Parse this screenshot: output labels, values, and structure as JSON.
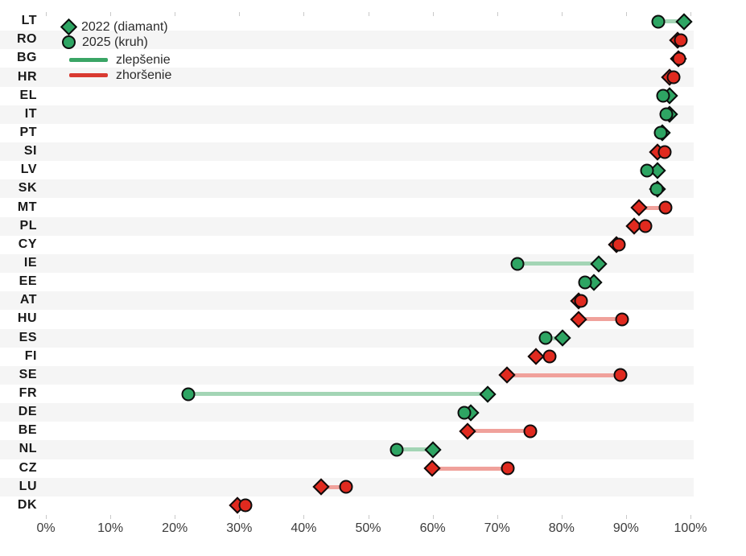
{
  "legend": {
    "item_2022": "2022 (diamant)",
    "item_2025": "2025 (kruh)",
    "improvement_label": "zlepšenie",
    "worsening_label": "zhoršenie"
  },
  "colors": {
    "green_marker": "#2ea563",
    "red_marker": "#e02a1f",
    "green_line": "#a3d5b5",
    "red_line": "#f0a19b",
    "band_gray": "#f5f5f5",
    "band_white": "#ffffff",
    "marker_border": "#0d0d0d",
    "axis_text": "#3c3c3c",
    "ylabel_text": "#1a1a1a"
  },
  "x_axis": {
    "tick_labels": [
      "0%",
      "10%",
      "20%",
      "30%",
      "40%",
      "50%",
      "60%",
      "70%",
      "80%",
      "90%",
      "100%"
    ],
    "tick_values": [
      0,
      10,
      20,
      30,
      40,
      50,
      60,
      70,
      80,
      90,
      100
    ],
    "min": 0,
    "max": 100
  },
  "chart_data": {
    "type": "dumbbell",
    "title": "",
    "xlabel": "",
    "ylabel": "",
    "xlim": [
      0,
      100
    ],
    "grid": "alternating-row-bands",
    "legend_position": "top-left-inside",
    "categories": [
      "LT",
      "RO",
      "BG",
      "HR",
      "EL",
      "IT",
      "PT",
      "SI",
      "LV",
      "SK",
      "MT",
      "PL",
      "CY",
      "IE",
      "EE",
      "AT",
      "HU",
      "ES",
      "FI",
      "SE",
      "FR",
      "DE",
      "BE",
      "NL",
      "CZ",
      "LU",
      "DK"
    ],
    "series": [
      {
        "name": "2022 (diamant)",
        "marker": "diamond",
        "values": [
          99.0,
          98.0,
          98.1,
          96.8,
          96.7,
          96.7,
          95.6,
          94.9,
          94.9,
          94.9,
          92.0,
          91.2,
          88.5,
          85.8,
          85.0,
          82.7,
          82.6,
          80.1,
          76.0,
          71.5,
          68.5,
          65.9,
          65.4,
          60.0,
          59.9,
          42.7,
          29.7
        ]
      },
      {
        "name": "2025 (kruh)",
        "marker": "circle",
        "values": [
          95.0,
          98.5,
          98.3,
          97.4,
          95.7,
          96.3,
          95.4,
          96.0,
          93.2,
          94.7,
          96.1,
          93.0,
          88.9,
          73.2,
          83.6,
          83.0,
          89.4,
          77.5,
          78.2,
          89.2,
          22.1,
          64.9,
          75.1,
          54.4,
          71.7,
          46.6,
          31.0
        ]
      }
    ],
    "change": [
      "zlepšenie",
      "zhoršenie",
      "zhoršenie",
      "zhoršenie",
      "zlepšenie",
      "zlepšenie",
      "zlepšenie",
      "zhoršenie",
      "zlepšenie",
      "zlepšenie",
      "zhoršenie",
      "zhoršenie",
      "zhoršenie",
      "zlepšenie",
      "zlepšenie",
      "zhoršenie",
      "zhoršenie",
      "zlepšenie",
      "zhoršenie",
      "zhoršenie",
      "zlepšenie",
      "zlepšenie",
      "zhoršenie",
      "zlepšenie",
      "zhoršenie",
      "zhoršenie",
      "zhoršenie"
    ]
  }
}
